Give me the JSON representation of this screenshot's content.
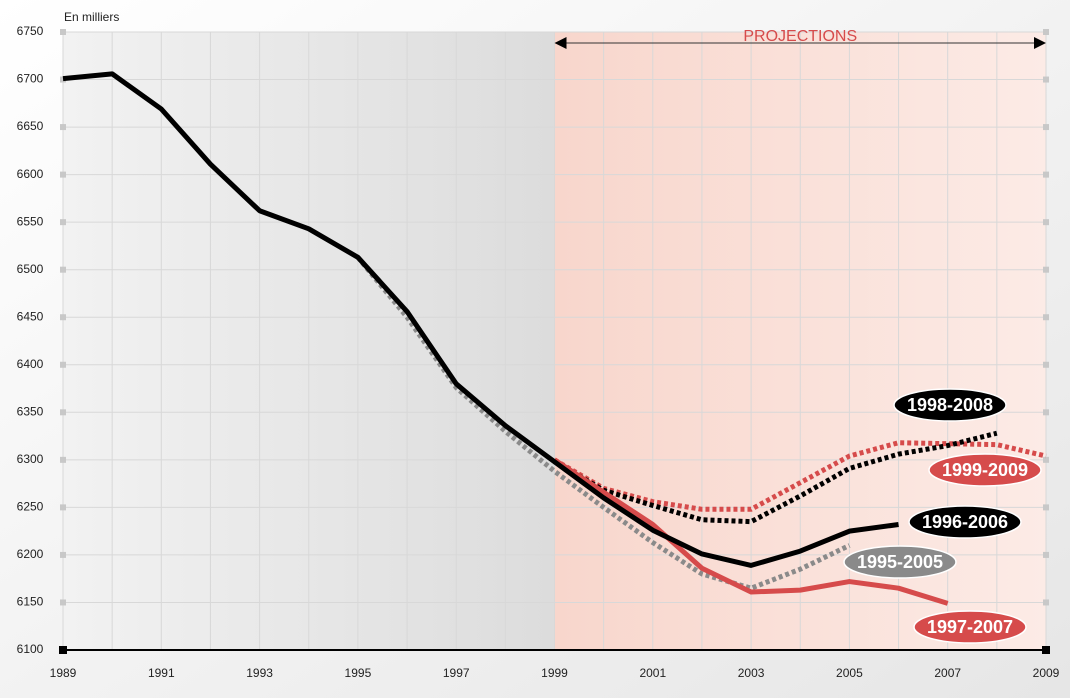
{
  "chart_data": {
    "type": "line",
    "unit_label": "En milliers",
    "annotation": "PROJECTIONS",
    "x": [
      1989,
      1990,
      1991,
      1992,
      1993,
      1994,
      1995,
      1996,
      1997,
      1998,
      1999,
      2000,
      2001,
      2002,
      2003,
      2004,
      2005,
      2006,
      2007,
      2008,
      2009
    ],
    "xlim": [
      1989,
      2009
    ],
    "xticks": [
      1989,
      1991,
      1993,
      1995,
      1997,
      1999,
      2001,
      2003,
      2005,
      2007,
      2009
    ],
    "ylim": [
      6100,
      6750
    ],
    "yticks": [
      6100,
      6150,
      6200,
      6250,
      6300,
      6350,
      6400,
      6450,
      6500,
      6550,
      6600,
      6650,
      6700,
      6750
    ],
    "grid": true,
    "projection_start": 1999,
    "series": [
      {
        "name": "1995-2005",
        "color": "#8a8a8a",
        "style": "dotted",
        "values": [
          null,
          null,
          null,
          null,
          null,
          null,
          6513,
          6450,
          6376,
          6330,
          6288,
          6250,
          6213,
          6180,
          6165,
          6185,
          6210,
          null,
          null,
          null,
          null
        ]
      },
      {
        "name": "1999-2009",
        "color": "#d64b4b",
        "style": "dotted",
        "values": [
          null,
          null,
          null,
          null,
          null,
          null,
          null,
          null,
          null,
          null,
          6300,
          6270,
          6256,
          6248,
          6248,
          6276,
          6304,
          6318,
          6317,
          6316,
          6304
        ]
      },
      {
        "name": "1998-2008",
        "color": "#000000",
        "style": "dotted",
        "values": [
          null,
          null,
          null,
          null,
          null,
          null,
          null,
          null,
          null,
          null,
          6298,
          6268,
          6252,
          6237,
          6235,
          6262,
          6291,
          6306,
          6315,
          6328,
          null
        ]
      },
      {
        "name": "1997-2007",
        "color": "#d64b4b",
        "style": "solid",
        "values": [
          null,
          null,
          null,
          null,
          null,
          null,
          null,
          null,
          null,
          null,
          6300,
          6266,
          6232,
          6186,
          6161,
          6163,
          6172,
          6165,
          6149,
          null,
          null
        ]
      },
      {
        "name": "1996-2006",
        "color": "#000000",
        "style": "solid",
        "values": [
          6701,
          6706,
          6669,
          6611,
          6562,
          6543,
          6513,
          6456,
          6380,
          6336,
          6298,
          6260,
          6226,
          6201,
          6189,
          6204,
          6225,
          6232,
          null,
          null,
          null
        ]
      }
    ]
  }
}
